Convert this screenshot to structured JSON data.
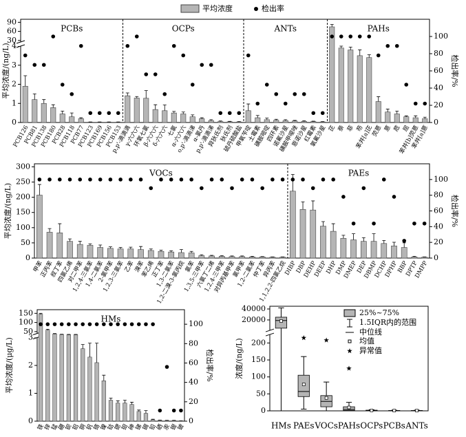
{
  "chart_data": [
    {
      "type": "bar",
      "ylabel": "平均浓度/(ng/L)",
      "y2label": "检出率/%",
      "legend": [
        "平均浓度",
        "检出率"
      ],
      "bar_color": "#b5b5b5",
      "dot_color": "#000000",
      "ylim": [
        0,
        100
      ],
      "ybreak": [
        4,
        25
      ],
      "yticks": [
        0,
        1,
        2,
        3,
        4,
        30,
        60,
        90
      ],
      "y2lim": [
        0,
        120
      ],
      "y2ticks": [
        0,
        20,
        40,
        60,
        80,
        100
      ],
      "groups": [
        {
          "label": "PCBs",
          "categories": [
            "PCB126",
            "PCB81",
            "PCB138",
            "PCB180",
            "PCB28",
            "PCB118",
            "PCB77",
            "PCB123",
            "PCB169",
            "PCB156",
            "PCB153"
          ],
          "values": [
            1.9,
            1.2,
            1.0,
            0.78,
            0.45,
            0.3,
            0.2,
            0.02,
            0.02,
            0.02,
            0.02
          ],
          "errors": [
            0.55,
            0.3,
            0.2,
            0.15,
            0.15,
            0.2,
            0.05,
            0.01,
            0.01,
            0.01,
            0.01
          ],
          "detection": [
            78,
            67,
            67,
            100,
            44,
            33,
            89,
            11,
            11,
            11,
            11
          ]
        },
        {
          "label": "OCPs",
          "categories": [
            "p,p'-滴滴滴",
            "γ-六六六",
            "环氧七氯",
            "β-六六六",
            "δ-六六六",
            "七氯",
            "α-六六六",
            "o,p'-滴滴涕",
            "α-氯丹",
            "p,p'-滴滴涕",
            "异狄氏剂",
            "狄氏剂",
            "硫丹硫酸盐"
          ],
          "values": [
            1.4,
            1.28,
            1.27,
            0.68,
            0.62,
            0.5,
            0.45,
            0.3,
            0.2,
            0.1,
            0.05,
            0.04,
            0.03
          ],
          "errors": [
            0.15,
            0.08,
            0.4,
            0.25,
            0.3,
            0.08,
            0.1,
            0.1,
            0.05,
            0.05,
            0.03,
            0.02,
            0.02
          ],
          "detection": [
            89,
            100,
            56,
            56,
            33,
            89,
            78,
            44,
            67,
            67,
            11,
            11,
            11
          ]
        },
        {
          "label": "ANTs",
          "categories": [
            "甲氧苄啶",
            "土霉素",
            "磺胺嘧啶",
            "四环素",
            "诺氟沙星",
            "磺胺甲噁唑",
            "恩诺沙星",
            "红霉素",
            "氧氟沙星"
          ],
          "values": [
            0.62,
            0.25,
            0.15,
            0.12,
            0.1,
            0.08,
            0.06,
            0.05,
            0.03
          ],
          "errors": [
            0.35,
            0.12,
            0.08,
            0.05,
            0.05,
            0.03,
            0.03,
            0.02,
            0.02
          ],
          "detection": [
            78,
            22,
            44,
            33,
            22,
            33,
            33,
            11,
            11
          ]
        },
        {
          "label": "PAHs",
          "categories": [
            "芘",
            "萘",
            "菲",
            "芴",
            "苯并[a]芘",
            "荧蒽",
            "蒽",
            "苊",
            "屈",
            "苯并[b]荧蒽",
            "苯并[a]蒽"
          ],
          "values": [
            75,
            3.9,
            3.8,
            3.5,
            3.4,
            1.1,
            0.55,
            0.45,
            0.3,
            0.25,
            0.2
          ],
          "errors": [
            8,
            0.1,
            0.15,
            0.3,
            0.15,
            0.25,
            0.15,
            0.15,
            0.05,
            0.1,
            0.08
          ],
          "detection": [
            100,
            100,
            100,
            100,
            100,
            78,
            89,
            89,
            44,
            22,
            22
          ]
        }
      ]
    },
    {
      "type": "bar",
      "ylabel": "平均浓度/(ng/L)",
      "y2label": "检出率/%",
      "bar_color": "#b5b5b5",
      "dot_color": "#000000",
      "ylim": [
        0,
        310
      ],
      "yticks": [
        0,
        50,
        100,
        150,
        200,
        250,
        300
      ],
      "y2lim": [
        0,
        120
      ],
      "y2ticks": [
        0,
        20,
        40,
        60,
        80,
        100
      ],
      "groups": [
        {
          "label": "VOCs",
          "categories": [
            "甲苯",
            "正丙苯",
            "叔丁苯",
            "四氯乙烯",
            "对二甲苯",
            "1,2,4-三氯苯",
            "1,4-二氯苯",
            "2-氯甲苯",
            "1,2,3-三氯苯",
            "乙苯",
            "溴苯",
            "苯乙烯",
            "正丁苯",
            "1,3-二氯苯",
            "1,2-二溴-3-氯丙烷",
            "氯苯",
            "1,3,5-三甲苯",
            "六氯丁二烯",
            "1,2,4-三甲苯",
            "对异丙基甲苯",
            "氯甲苯",
            "1,2-二氯苯",
            "仲丁苯",
            "异丙苯",
            "1,1,2,2-四氯乙烷"
          ],
          "values": [
            207,
            85,
            83,
            55,
            45,
            42,
            35,
            32,
            30,
            30,
            28,
            25,
            22,
            20,
            18,
            17,
            8,
            7,
            6,
            5,
            5,
            4,
            4,
            3,
            3
          ],
          "errors": [
            35,
            12,
            30,
            8,
            10,
            5,
            8,
            5,
            5,
            6,
            10,
            5,
            4,
            4,
            10,
            5,
            3,
            2,
            2,
            2,
            2,
            2,
            1,
            1,
            1
          ],
          "detection": [
            100,
            100,
            100,
            100,
            100,
            100,
            100,
            100,
            100,
            100,
            100,
            89,
            100,
            100,
            100,
            100,
            89,
            100,
            100,
            89,
            100,
            100,
            89,
            100,
            100
          ]
        },
        {
          "label": "PAEs",
          "categories": [
            "DIBP",
            "DBP",
            "DEHP",
            "DEEP",
            "DHP",
            "DMP",
            "DMEP",
            "DEP",
            "DBMP",
            "DCHP",
            "DPHP",
            "BBP",
            "DPTP",
            "DMPP"
          ],
          "values": [
            220,
            160,
            158,
            105,
            88,
            65,
            60,
            55,
            55,
            48,
            40,
            35,
            4,
            3
          ],
          "errors": [
            55,
            25,
            30,
            15,
            25,
            10,
            20,
            12,
            25,
            10,
            12,
            15,
            2,
            1
          ],
          "detection": [
            100,
            100,
            89,
            100,
            100,
            78,
            44,
            89,
            44,
            100,
            78,
            22,
            44,
            44
          ]
        }
      ]
    },
    {
      "type": "bar",
      "ylabel": "平均浓度/(μg/L)",
      "y2label": "检出率/%",
      "bar_color": "#b5b5b5",
      "dot_color": "#000000",
      "ylim": [
        0,
        170
      ],
      "ybreak": [
        3,
        40
      ],
      "yticks": [
        0,
        1,
        2,
        3,
        50,
        100,
        150
      ],
      "y2lim": [
        0,
        115
      ],
      "y2ticks": [
        0,
        20,
        40,
        60,
        80,
        100
      ],
      "groups": [
        {
          "label": "HMs",
          "categories": [
            "铁",
            "锌",
            "锰",
            "硼",
            "钡",
            "铝",
            "铜",
            "钒",
            "铬",
            "镍",
            "钴",
            "锶",
            "钼",
            "砷",
            "锑",
            "镉",
            "铅",
            "硒",
            "汞",
            "银",
            "铍"
          ],
          "values": [
            145,
            58,
            35,
            30,
            28,
            28,
            2.6,
            2.3,
            2.1,
            1.45,
            0.75,
            0.65,
            0.65,
            0.6,
            0.35,
            0.28,
            0.05,
            0.03,
            0.02,
            0.02,
            0.01
          ],
          "errors": [
            5,
            5,
            4,
            3,
            3,
            3,
            0.15,
            0.5,
            0.7,
            0.2,
            0.08,
            0.08,
            0.1,
            0.08,
            0.05,
            0.1,
            0.02,
            0.01,
            0.01,
            0.01,
            0.005
          ],
          "detection": [
            100,
            100,
            100,
            100,
            100,
            100,
            100,
            100,
            100,
            100,
            100,
            100,
            100,
            100,
            100,
            100,
            100,
            11,
            56,
            11,
            11
          ]
        }
      ]
    },
    {
      "type": "box",
      "ylabel": "浓度/(ng/L)",
      "legend": [
        "25%~75%",
        "1.5IQR内的范围",
        "中位线",
        "均值",
        "异常值"
      ],
      "box_color": "#b5b5b5",
      "ylim": [
        0,
        45000
      ],
      "ybreak": [
        225,
        1000
      ],
      "yticks": [
        0,
        50,
        100,
        150,
        200,
        20000,
        40000
      ],
      "categories": [
        "HMs",
        "PAEs",
        "VOCs",
        "PAHs",
        "OCPs",
        "PCBs",
        "ANTs"
      ],
      "boxes": [
        {
          "min": 0,
          "q1": 5000,
          "median": 19000,
          "q3": 25000,
          "max": 42000,
          "mean": 18000,
          "outliers": []
        },
        {
          "min": 5,
          "q1": 42,
          "median": 57,
          "q3": 105,
          "max": 160,
          "mean": 78,
          "outliers": [
            215
          ]
        },
        {
          "min": 0,
          "q1": 12,
          "median": 28,
          "q3": 45,
          "max": 85,
          "mean": 38,
          "outliers": [
            208
          ]
        },
        {
          "min": 0,
          "q1": 1,
          "median": 4,
          "q3": 12,
          "max": 25,
          "mean": 10,
          "outliers": [
            125
          ]
        },
        {
          "min": 0,
          "q1": 0.5,
          "median": 1,
          "q3": 2,
          "max": 3,
          "mean": 1.2,
          "outliers": []
        },
        {
          "min": 0,
          "q1": 0.3,
          "median": 0.6,
          "q3": 1,
          "max": 2,
          "mean": 0.7,
          "outliers": []
        },
        {
          "min": 0,
          "q1": 0.2,
          "median": 0.5,
          "q3": 1,
          "max": 2,
          "mean": 0.6,
          "outliers": []
        }
      ]
    }
  ]
}
